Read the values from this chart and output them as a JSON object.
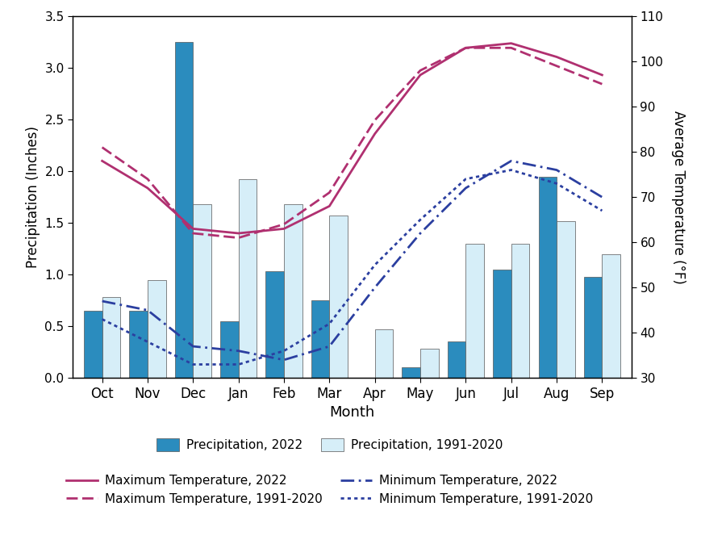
{
  "months": [
    "Oct",
    "Nov",
    "Dec",
    "Jan",
    "Feb",
    "Mar",
    "Apr",
    "May",
    "Jun",
    "Jul",
    "Aug",
    "Sep"
  ],
  "precip_2022": [
    0.65,
    0.65,
    3.25,
    0.55,
    1.03,
    0.75,
    0.0,
    0.1,
    0.35,
    1.05,
    1.95,
    0.98
  ],
  "precip_avg": [
    0.78,
    0.95,
    1.68,
    1.92,
    1.68,
    1.57,
    0.47,
    0.28,
    1.3,
    1.3,
    1.52,
    1.2
  ],
  "tmax_2022": [
    78,
    72,
    63,
    62,
    63,
    68,
    84,
    97,
    103,
    104,
    101,
    97
  ],
  "tmax_avg": [
    81,
    74,
    62,
    61,
    64,
    71,
    87,
    98,
    103,
    103,
    99,
    95
  ],
  "tmin_2022": [
    47,
    45,
    37,
    36,
    34,
    37,
    50,
    62,
    72,
    78,
    76,
    70
  ],
  "tmin_avg": [
    43,
    38,
    33,
    33,
    36,
    42,
    55,
    65,
    74,
    76,
    73,
    67
  ],
  "precip_color_2022": "#2b8cbe",
  "precip_color_avg": "#d6eef8",
  "tmax_color": "#b03070",
  "tmin_color": "#2b3fa0",
  "ylim_precip": [
    0.0,
    3.5
  ],
  "ylim_temp": [
    30,
    110
  ],
  "xlabel": "Month",
  "ylabel_left": "Precipitation (Inches)",
  "ylabel_right": "Average Temperature (°F)",
  "yticks_precip": [
    0.0,
    0.5,
    1.0,
    1.5,
    2.0,
    2.5,
    3.0,
    3.5
  ],
  "yticks_temp": [
    30,
    40,
    50,
    60,
    70,
    80,
    90,
    100,
    110
  ]
}
